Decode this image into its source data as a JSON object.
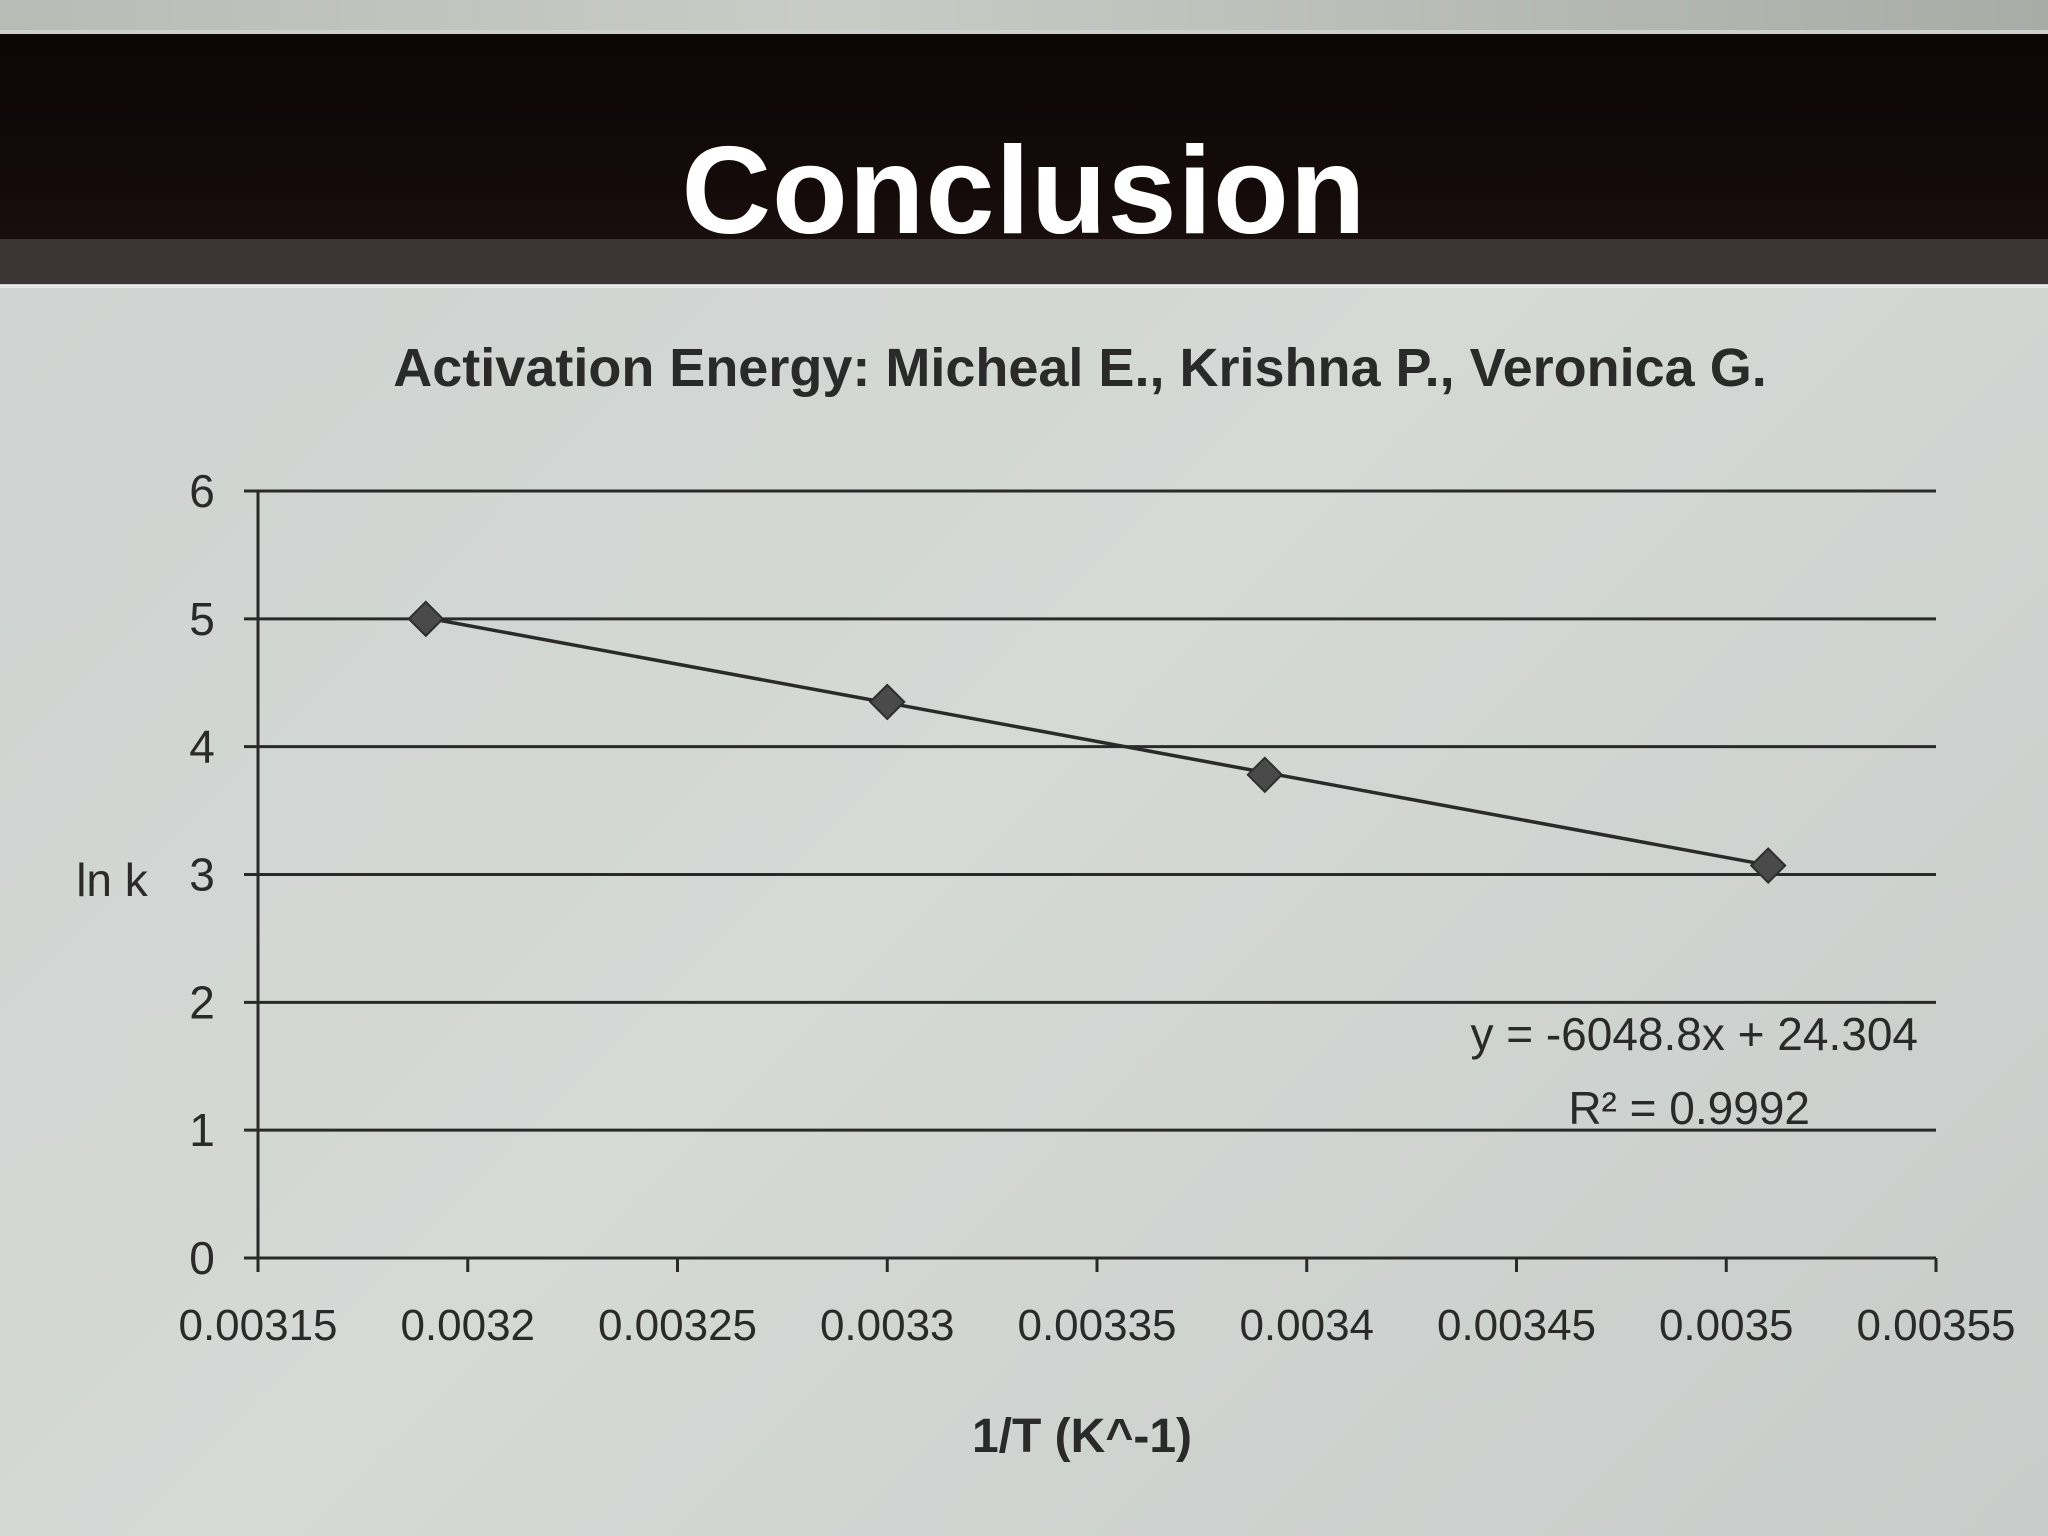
{
  "slide": {
    "title": "Conclusion"
  },
  "colors": {
    "title_bar": "#140a0a",
    "paper": "#d2d5d3",
    "ink": "#2a2a2a",
    "title_text": "#ffffff"
  },
  "chart_data": {
    "type": "scatter",
    "title": "Activation Energy: Micheal E., Krishna P., Veronica G.",
    "xlabel": "1/T (K^-1)",
    "ylabel": "ln k",
    "xlim": [
      0.00315,
      0.00355
    ],
    "ylim": [
      0,
      6
    ],
    "x_ticks": [
      0.00315,
      0.0032,
      0.00325,
      0.0033,
      0.00335,
      0.0034,
      0.00345,
      0.0035,
      0.00355
    ],
    "x_tick_labels": [
      "0.00315",
      "0.0032",
      "0.00325",
      "0.0033",
      "0.00335",
      "0.0034",
      "0.00345",
      "0.0035",
      "0.00355"
    ],
    "y_ticks": [
      0,
      1,
      2,
      3,
      4,
      5,
      6
    ],
    "y_tick_labels": [
      "0",
      "1",
      "2",
      "3",
      "4",
      "5",
      "6"
    ],
    "grid": "horizontal",
    "marker": "diamond",
    "series": [
      {
        "x": [
          0.00319,
          0.0033,
          0.00339,
          0.00351
        ],
        "y": [
          5.0,
          4.35,
          3.78,
          3.07
        ]
      }
    ],
    "trendline": {
      "type": "linear",
      "slope": -6048.8,
      "intercept": 24.304,
      "x_range": [
        0.00319,
        0.00351
      ]
    },
    "annotations": {
      "equation": "y = -6048.8x + 24.304",
      "r_squared_label": "R² = 0.9992"
    }
  }
}
